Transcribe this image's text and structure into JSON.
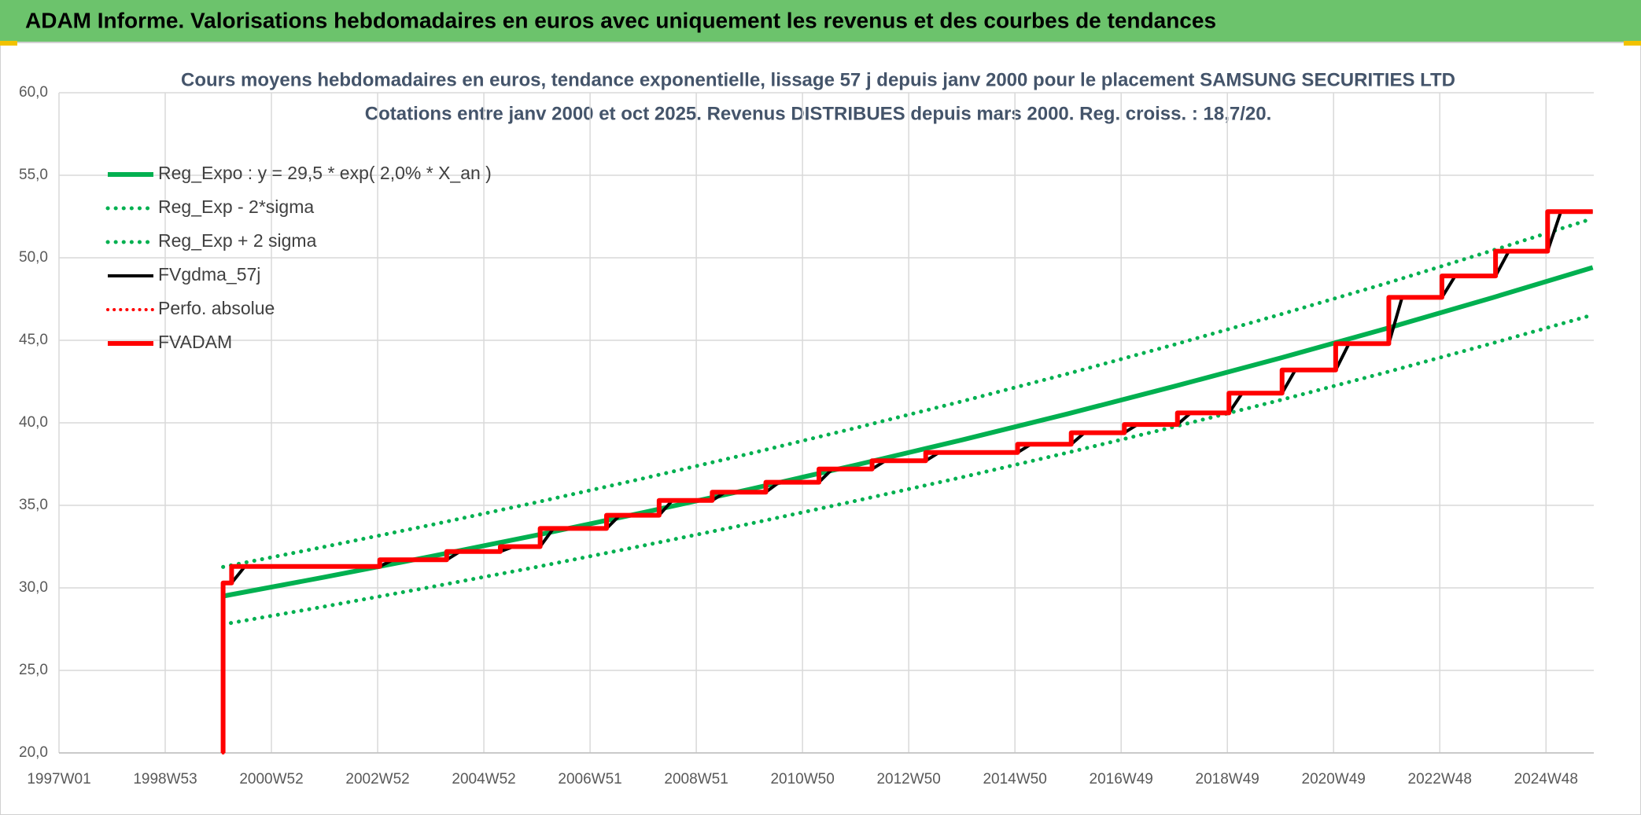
{
  "chart_data": {
    "type": "line",
    "title": "ADAM Informe. Valorisations hebdomadaires en euros avec uniquement les revenus et des courbes de tendances",
    "subtitle": [
      "Cours moyens hebdomadaires en euros, tendance exponentielle, lissage 57 j depuis janv 2000 pour le placement SAMSUNG SECURITIES LTD",
      "Cotations entre janv 2000 et oct 2025. Revenus DISTRIBUES depuis mars 2000. Reg. croiss. : 18,7/20."
    ],
    "xlim": [
      1997,
      2025.9
    ],
    "xticks": [
      {
        "value": 1997,
        "label": "1997W01"
      },
      {
        "value": 1999,
        "label": "1998W53"
      },
      {
        "value": 2001,
        "label": "2000W52"
      },
      {
        "value": 2003,
        "label": "2002W52"
      },
      {
        "value": 2005,
        "label": "2004W52"
      },
      {
        "value": 2007,
        "label": "2006W51"
      },
      {
        "value": 2009,
        "label": "2008W51"
      },
      {
        "value": 2011,
        "label": "2010W50"
      },
      {
        "value": 2013,
        "label": "2012W50"
      },
      {
        "value": 2015,
        "label": "2014W50"
      },
      {
        "value": 2017,
        "label": "2016W49"
      },
      {
        "value": 2019,
        "label": "2018W49"
      },
      {
        "value": 2021,
        "label": "2020W49"
      },
      {
        "value": 2023,
        "label": "2022W48"
      },
      {
        "value": 2025,
        "label": "2024W48"
      }
    ],
    "ylim": [
      20,
      60
    ],
    "yticks": [
      {
        "value": 20,
        "label": "20,0"
      },
      {
        "value": 25,
        "label": "25,0"
      },
      {
        "value": 30,
        "label": "30,0"
      },
      {
        "value": 35,
        "label": "35,0"
      },
      {
        "value": 40,
        "label": "40,0"
      },
      {
        "value": 45,
        "label": "45,0"
      },
      {
        "value": 50,
        "label": "50,0"
      },
      {
        "value": 55,
        "label": "55,0"
      },
      {
        "value": 60,
        "label": "60,0"
      }
    ],
    "grid": true,
    "legend": "upper left",
    "series": [
      {
        "name": "Reg_Expo : y = 29,5 * exp( 2,0% *  X_an )",
        "color": "#00b050",
        "style": "solid",
        "width": 6,
        "x": [
          2000.09,
          2002,
          2004,
          2006,
          2008,
          2010,
          2012,
          2014,
          2016,
          2018,
          2020,
          2022,
          2024,
          2025.88
        ],
        "values": [
          29.5,
          30.65,
          31.9,
          33.2,
          34.56,
          35.97,
          37.44,
          38.96,
          40.55,
          42.21,
          43.93,
          45.72,
          47.59,
          49.41
        ]
      },
      {
        "name": "Reg_Exp - 2*sigma",
        "color": "#00b050",
        "style": "dotted",
        "width": 5,
        "x": [
          2000.09,
          2002,
          2004,
          2006,
          2008,
          2010,
          2012,
          2014,
          2016,
          2018,
          2020,
          2022,
          2024,
          2025.88
        ],
        "values": [
          27.79,
          28.87,
          30.05,
          31.27,
          32.56,
          33.88,
          35.27,
          36.7,
          38.2,
          39.76,
          41.38,
          43.07,
          44.83,
          46.54
        ]
      },
      {
        "name": "Reg_Exp + 2 sigma",
        "color": "#00b050",
        "style": "dotted",
        "width": 5,
        "x": [
          2000.09,
          2002,
          2004,
          2006,
          2008,
          2010,
          2012,
          2014,
          2016,
          2018,
          2020,
          2022,
          2024,
          2025.88
        ],
        "values": [
          31.27,
          32.49,
          33.81,
          35.19,
          36.63,
          38.13,
          39.69,
          41.3,
          42.98,
          44.74,
          46.57,
          48.46,
          50.45,
          52.38
        ]
      },
      {
        "name": "FVgdma_57j",
        "color": "#000000",
        "style": "solid",
        "width": 4,
        "x": [
          2000.09,
          2000.25,
          2000.5,
          2003.04,
          2003.29,
          2004.3,
          2004.55,
          2005.31,
          2005.56,
          2006.06,
          2006.31,
          2007.31,
          2007.56,
          2008.3,
          2008.55,
          2009.3,
          2009.55,
          2010.31,
          2010.56,
          2011.31,
          2011.56,
          2012.31,
          2012.56,
          2013.32,
          2013.57,
          2015.05,
          2015.3,
          2016.06,
          2016.31,
          2017.06,
          2017.31,
          2018.06,
          2018.31,
          2019.03,
          2019.28,
          2020.03,
          2020.28,
          2021.04,
          2021.29,
          2022.04,
          2022.29,
          2023.04,
          2023.29,
          2024.05,
          2024.3,
          2025.03,
          2025.28,
          2025.88
        ],
        "values": [
          30.3,
          30.3,
          31.3,
          31.3,
          31.7,
          31.7,
          32.2,
          32.2,
          32.5,
          32.5,
          33.6,
          33.6,
          34.4,
          34.4,
          35.3,
          35.3,
          35.8,
          35.8,
          36.4,
          36.4,
          37.2,
          37.2,
          37.7,
          37.7,
          38.2,
          38.2,
          38.7,
          38.7,
          39.4,
          39.4,
          39.9,
          39.9,
          40.6,
          40.6,
          41.8,
          41.8,
          43.2,
          43.2,
          44.8,
          44.8,
          47.6,
          47.6,
          48.9,
          48.9,
          50.4,
          50.4,
          52.8,
          52.8
        ]
      },
      {
        "name": "Perfo. absolue",
        "color": "#ff0000",
        "style": "dotted",
        "width": 4,
        "x": [
          2000.09,
          2000.09,
          2000.25,
          2000.25,
          2003.04,
          2003.04,
          2004.3,
          2004.3,
          2005.31,
          2005.31,
          2006.06,
          2006.06,
          2007.31,
          2007.31,
          2008.3,
          2008.3,
          2009.3,
          2009.3,
          2010.31,
          2010.31,
          2011.31,
          2011.31,
          2012.31,
          2012.31,
          2013.32,
          2013.32,
          2015.05,
          2015.05,
          2016.06,
          2016.06,
          2017.06,
          2017.06,
          2018.06,
          2018.06,
          2019.03,
          2019.03,
          2020.03,
          2020.03,
          2021.04,
          2021.04,
          2022.04,
          2022.04,
          2023.04,
          2023.04,
          2024.05,
          2024.05,
          2025.03,
          2025.03,
          2025.88
        ],
        "values": [
          20,
          30.3,
          30.3,
          31.3,
          31.3,
          31.7,
          31.7,
          32.2,
          32.2,
          32.5,
          32.5,
          33.6,
          33.6,
          34.4,
          34.4,
          35.3,
          35.3,
          35.8,
          35.8,
          36.4,
          36.4,
          37.2,
          37.2,
          37.7,
          37.7,
          38.2,
          38.2,
          38.7,
          38.7,
          39.4,
          39.4,
          39.9,
          39.9,
          40.6,
          40.6,
          41.8,
          41.8,
          43.2,
          43.2,
          44.8,
          44.8,
          47.6,
          47.6,
          48.9,
          48.9,
          50.4,
          50.4,
          52.8,
          52.8
        ]
      },
      {
        "name": "FVADAM",
        "color": "#ff0000",
        "style": "solid",
        "width": 6,
        "x": [
          2000.09,
          2000.09,
          2000.25,
          2000.25,
          2003.04,
          2003.04,
          2004.3,
          2004.3,
          2005.31,
          2005.31,
          2006.06,
          2006.06,
          2007.31,
          2007.31,
          2008.3,
          2008.3,
          2009.3,
          2009.3,
          2010.31,
          2010.31,
          2011.31,
          2011.31,
          2012.31,
          2012.31,
          2013.32,
          2013.32,
          2015.05,
          2015.05,
          2016.06,
          2016.06,
          2017.06,
          2017.06,
          2018.06,
          2018.06,
          2019.03,
          2019.03,
          2020.03,
          2020.03,
          2021.04,
          2021.04,
          2022.04,
          2022.04,
          2023.04,
          2023.04,
          2024.05,
          2024.05,
          2025.03,
          2025.03,
          2025.88
        ],
        "values": [
          20,
          30.3,
          30.3,
          31.3,
          31.3,
          31.7,
          31.7,
          32.2,
          32.2,
          32.5,
          32.5,
          33.6,
          33.6,
          34.4,
          34.4,
          35.3,
          35.3,
          35.8,
          35.8,
          36.4,
          36.4,
          37.2,
          37.2,
          37.7,
          37.7,
          38.2,
          38.2,
          38.7,
          38.7,
          39.4,
          39.4,
          39.9,
          39.9,
          40.6,
          40.6,
          41.8,
          41.8,
          43.2,
          43.2,
          44.8,
          44.8,
          47.6,
          47.6,
          48.9,
          48.9,
          50.4,
          50.4,
          52.8,
          52.8
        ]
      }
    ]
  }
}
